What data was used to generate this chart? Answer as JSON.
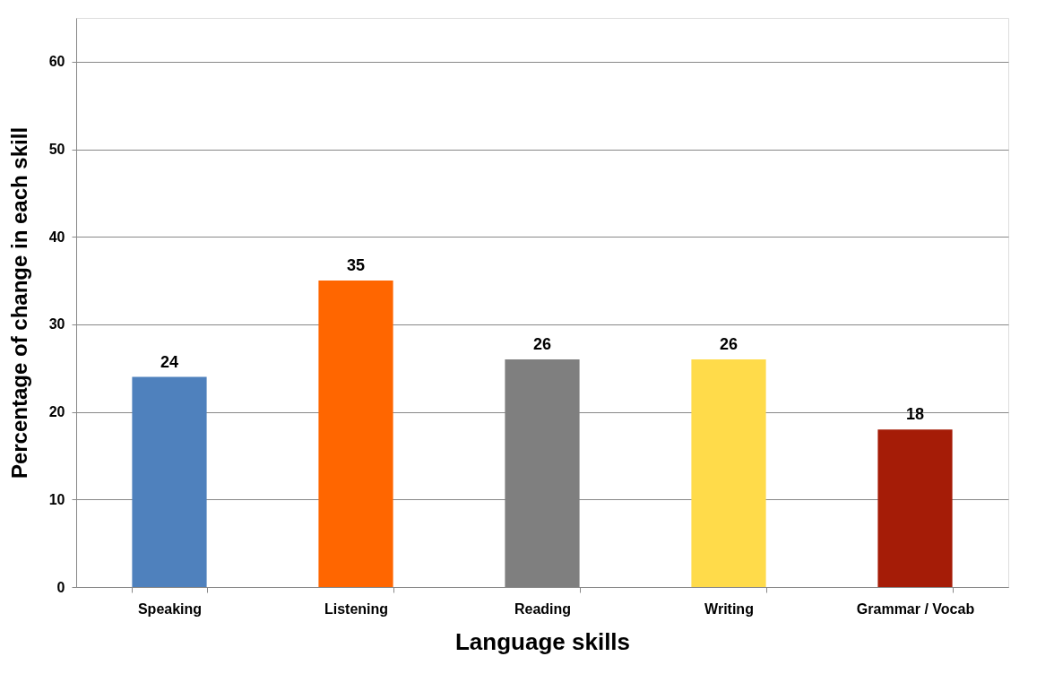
{
  "chart_data": {
    "type": "bar",
    "xlabel": "Language skills",
    "ylabel": "Percentage of change in each skill",
    "categories": [
      "Speaking",
      "Listening",
      "Reading",
      "Writing",
      "Grammar / Vocab"
    ],
    "values": [
      24,
      35,
      26,
      26,
      18
    ],
    "colors": [
      "#4f81bd",
      "#ff6600",
      "#7f7f7f",
      "#ffdb4a",
      "#a51c07"
    ],
    "ylim": [
      0,
      65
    ],
    "yticks": [
      0,
      10,
      20,
      30,
      40,
      50,
      60
    ],
    "grid": "y",
    "legend": false,
    "data_labels": true
  }
}
